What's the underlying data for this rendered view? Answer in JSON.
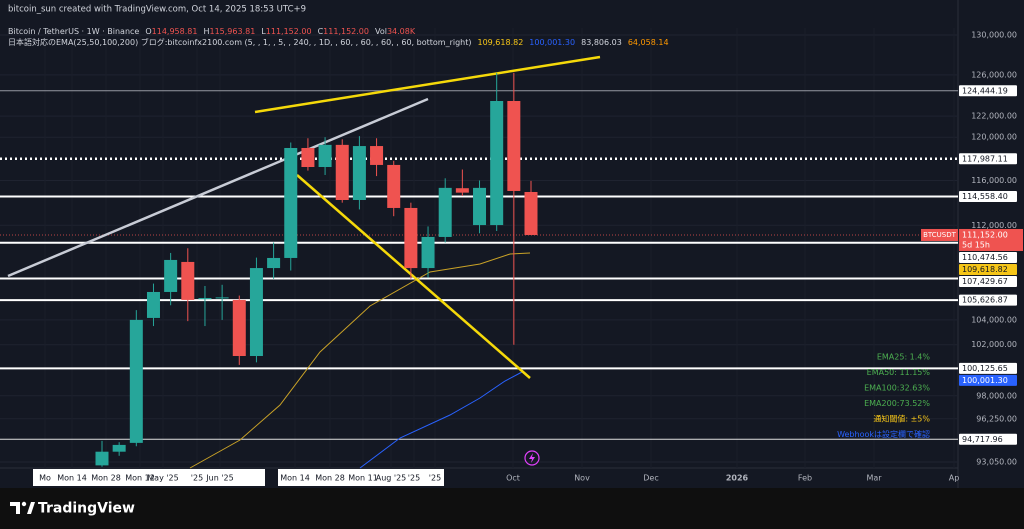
{
  "header": {
    "credit": "bitcoin_sun created with TradingView.com, Oct 14, 2025 18:53 UTC+9",
    "symbol": "Bitcoin / TetherUS · 1W · Binance",
    "ohlc": [
      {
        "letter": "O",
        "value": "114,958.81"
      },
      {
        "letter": "H",
        "value": "115,963.81"
      },
      {
        "letter": "L",
        "value": "111,152.00"
      },
      {
        "letter": "C",
        "value": "111,152.00"
      },
      {
        "letter": "Vol",
        "value": "34.08K"
      }
    ],
    "indicator": "日本語対応のEMA(25,50,100,200) ブログ:bitcoinfx2100.com (5, , 1, , 5, , 240, , 1D, , 60, , 60, , 60, , 60, bottom_right)",
    "indicator_values": [
      {
        "text": "109,618.82",
        "color": "#f5c518"
      },
      {
        "text": "100,001.30",
        "color": "#2962ff"
      },
      {
        "text": "83,806.03",
        "color": "#d1d4dc"
      },
      {
        "text": "64,058.14",
        "color": "#ff9800"
      }
    ]
  },
  "chart_data": {
    "type": "candlestick",
    "log_scale": true,
    "up_color": "#26a69a",
    "down_color": "#ef5350",
    "ylim": [
      92610,
      130714
    ],
    "yticks": [
      {
        "value": 130000,
        "label": "130,000.00"
      },
      {
        "value": 126000,
        "label": "126,000.00"
      },
      {
        "value": 122000,
        "label": "122,000.00"
      },
      {
        "value": 120000,
        "label": "120,000.00"
      },
      {
        "value": 116000,
        "label": "116,000.00"
      },
      {
        "value": 112000,
        "label": "112,000.00"
      },
      {
        "value": 104000,
        "label": "104,000.00"
      },
      {
        "value": 102000,
        "label": "102,000.00"
      },
      {
        "value": 98000,
        "label": "98,000.00"
      },
      {
        "value": 96250,
        "label": "96,250.00"
      },
      {
        "value": 93050,
        "label": "93,050.00"
      }
    ],
    "candles": [
      {
        "o": 92800,
        "h": 94600,
        "l": 92700,
        "c": 93800
      },
      {
        "o": 93800,
        "h": 94500,
        "l": 93500,
        "c": 94300
      },
      {
        "o": 94450,
        "h": 104800,
        "l": 94200,
        "c": 104000
      },
      {
        "o": 104160,
        "h": 107000,
        "l": 103500,
        "c": 106300
      },
      {
        "o": 106300,
        "h": 109600,
        "l": 105200,
        "c": 109000
      },
      {
        "o": 108830,
        "h": 110000,
        "l": 103900,
        "c": 105640
      },
      {
        "o": 105700,
        "h": 106800,
        "l": 103500,
        "c": 105800
      },
      {
        "o": 105800,
        "h": 106900,
        "l": 104000,
        "c": 105850
      },
      {
        "o": 105640,
        "h": 106000,
        "l": 100400,
        "c": 101100
      },
      {
        "o": 101100,
        "h": 109200,
        "l": 100600,
        "c": 108310
      },
      {
        "o": 108310,
        "h": 110500,
        "l": 107400,
        "c": 109170
      },
      {
        "o": 109170,
        "h": 119500,
        "l": 108100,
        "c": 118990
      },
      {
        "o": 118990,
        "h": 119900,
        "l": 116900,
        "c": 117230
      },
      {
        "o": 117230,
        "h": 120000,
        "l": 116500,
        "c": 119280
      },
      {
        "o": 119280,
        "h": 119800,
        "l": 114000,
        "c": 114240
      },
      {
        "o": 114240,
        "h": 120100,
        "l": 113400,
        "c": 119170
      },
      {
        "o": 119170,
        "h": 119900,
        "l": 116400,
        "c": 117420
      },
      {
        "o": 117420,
        "h": 117800,
        "l": 112800,
        "c": 113530
      },
      {
        "o": 113530,
        "h": 114000,
        "l": 107400,
        "c": 108310
      },
      {
        "o": 108310,
        "h": 111900,
        "l": 107500,
        "c": 110980
      },
      {
        "o": 110980,
        "h": 116200,
        "l": 110500,
        "c": 115330
      },
      {
        "o": 115300,
        "h": 117000,
        "l": 114600,
        "c": 114900
      },
      {
        "o": 112020,
        "h": 116000,
        "l": 111300,
        "c": 115330
      },
      {
        "o": 112020,
        "h": 126200,
        "l": 111500,
        "c": 123450
      },
      {
        "o": 123450,
        "h": 126200,
        "l": 102000,
        "c": 115050
      },
      {
        "o": 114958.81,
        "h": 115963.81,
        "l": 111152,
        "c": 111152
      }
    ],
    "levels": [
      {
        "value": 124444.19,
        "label": "124,444.19",
        "style": "thin-gray"
      },
      {
        "value": 117987.11,
        "label": "117,987.11",
        "style": "dotted"
      },
      {
        "value": 114558.4,
        "label": "114,558.40",
        "style": "solid"
      },
      {
        "value": 110474.56,
        "label": "110,474.56",
        "style": "solid"
      },
      {
        "value": 107429.67,
        "label": "107,429.67",
        "style": "solid"
      },
      {
        "value": 105626.87,
        "label": "105,626.87",
        "style": "solid"
      },
      {
        "value": 100125.65,
        "label": "100,125.65",
        "style": "solid"
      },
      {
        "value": 94717.96,
        "label": "94,717.96",
        "style": "thin"
      }
    ],
    "last_price": {
      "value": 111152,
      "label": "111,152.00",
      "countdown": "5d 15h",
      "symbol_tag": "BTCUSDT"
    },
    "ema_tags": [
      {
        "value": 109618.82,
        "label": "109,618.82",
        "color": "#f5c518"
      },
      {
        "value": 100001.3,
        "label": "100,001.30",
        "color": "#2962ff"
      }
    ],
    "x_labels": [
      "Mo",
      "Mon 14",
      "Mon 28",
      "Mon 12",
      "May '25",
      "'25",
      "Jun '25",
      "Mon 14",
      "Mon 28",
      "Mon 11",
      "Aug '25",
      "'25",
      "'25",
      "Oct",
      "Nov",
      "Dec",
      "2026",
      "Feb",
      "Mar",
      "Ap"
    ],
    "stats": [
      {
        "text": "EMA25: 1.4%",
        "color": "#4caf50"
      },
      {
        "text": "EMA50: 11.15%",
        "color": "#4caf50"
      },
      {
        "text": "EMA100:32.63%",
        "color": "#4caf50"
      },
      {
        "text": "EMA200:73.52%",
        "color": "#4caf50"
      },
      {
        "text": "通知閾値: ±5%",
        "color": "#f5c518"
      },
      {
        "text": "Webhookは設定欄で確認",
        "color": "#2962ff"
      }
    ]
  },
  "footer": {
    "brand": "TradingView"
  }
}
